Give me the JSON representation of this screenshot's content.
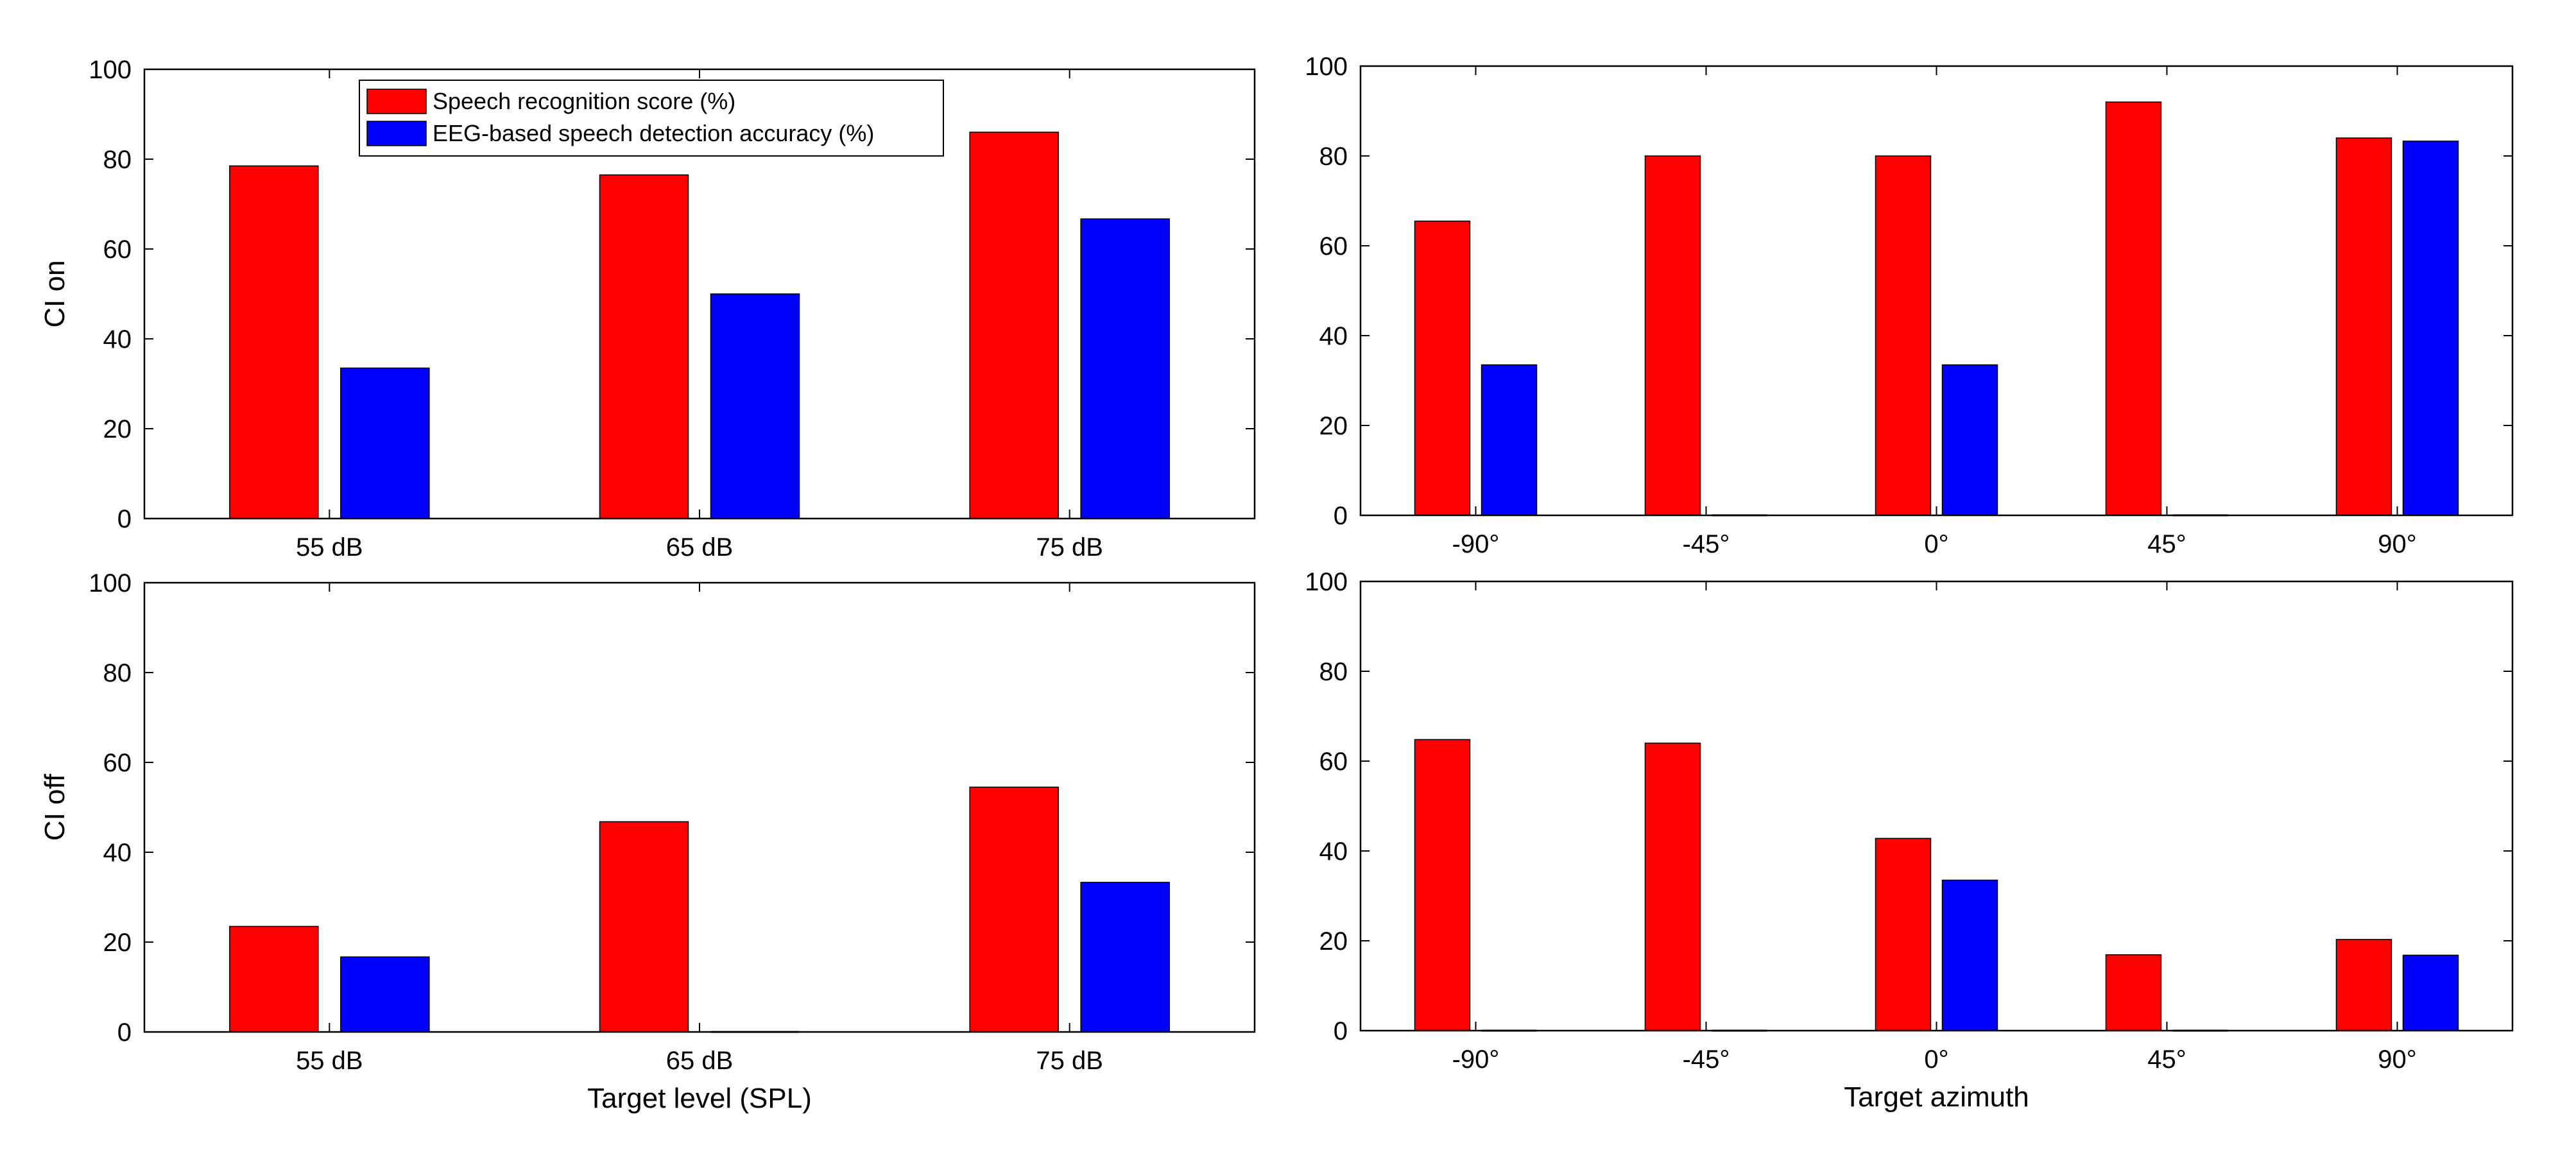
{
  "legend": {
    "entries": [
      {
        "label": "Speech recognition score (%)",
        "color": "#ff0000"
      },
      {
        "label": "EEG-based speech detection accuracy (%)",
        "color": "#0000ff"
      }
    ]
  },
  "colors": {
    "red": "#ff0000",
    "blue": "#0000ff",
    "axis": "#000000"
  },
  "chart_data": [
    {
      "type": "bar",
      "panel": "top-left",
      "categories": [
        "55 dB",
        "65 dB",
        "75 dB"
      ],
      "series": [
        {
          "name": "Speech recognition score (%)",
          "values": [
            78.5,
            76.5,
            86
          ]
        },
        {
          "name": "EEG-based speech detection accuracy (%)",
          "values": [
            33.5,
            50,
            66.7
          ]
        }
      ],
      "ylabel": "CI on",
      "xlabel": "",
      "ylim": [
        0,
        100
      ],
      "yticks": [
        "0",
        "20",
        "40",
        "60",
        "80",
        "100"
      ],
      "legend_position": "top-left"
    },
    {
      "type": "bar",
      "panel": "top-right",
      "categories": [
        "-90°",
        "-45°",
        "0°",
        "45°",
        "90°"
      ],
      "series": [
        {
          "name": "Speech recognition score (%)",
          "values": [
            65.5,
            80,
            80,
            92,
            84
          ]
        },
        {
          "name": "EEG-based speech detection accuracy (%)",
          "values": [
            33.5,
            0,
            33.5,
            0,
            83.3
          ]
        }
      ],
      "ylabel": "",
      "xlabel": "",
      "ylim": [
        0,
        100
      ],
      "yticks": [
        "0",
        "20",
        "40",
        "60",
        "80",
        "100"
      ]
    },
    {
      "type": "bar",
      "panel": "bottom-left",
      "categories": [
        "55 dB",
        "65 dB",
        "75 dB"
      ],
      "series": [
        {
          "name": "Speech recognition score (%)",
          "values": [
            23.5,
            46.8,
            54.5
          ]
        },
        {
          "name": "EEG-based speech detection accuracy (%)",
          "values": [
            16.7,
            0,
            33.3
          ]
        }
      ],
      "ylabel": "CI off",
      "xlabel": "Target level (SPL)",
      "ylim": [
        0,
        100
      ],
      "yticks": [
        "0",
        "20",
        "40",
        "60",
        "80",
        "100"
      ]
    },
    {
      "type": "bar",
      "panel": "bottom-right",
      "categories": [
        "-90°",
        "-45°",
        "0°",
        "45°",
        "90°"
      ],
      "series": [
        {
          "name": "Speech recognition score (%)",
          "values": [
            64.8,
            64,
            42.8,
            16.9,
            20.3
          ]
        },
        {
          "name": "EEG-based speech detection accuracy (%)",
          "values": [
            0,
            0,
            33.5,
            0,
            16.8
          ]
        }
      ],
      "ylabel": "",
      "xlabel": "Target azimuth",
      "ylim": [
        0,
        100
      ],
      "yticks": [
        "0",
        "20",
        "40",
        "60",
        "80",
        "100"
      ]
    }
  ]
}
